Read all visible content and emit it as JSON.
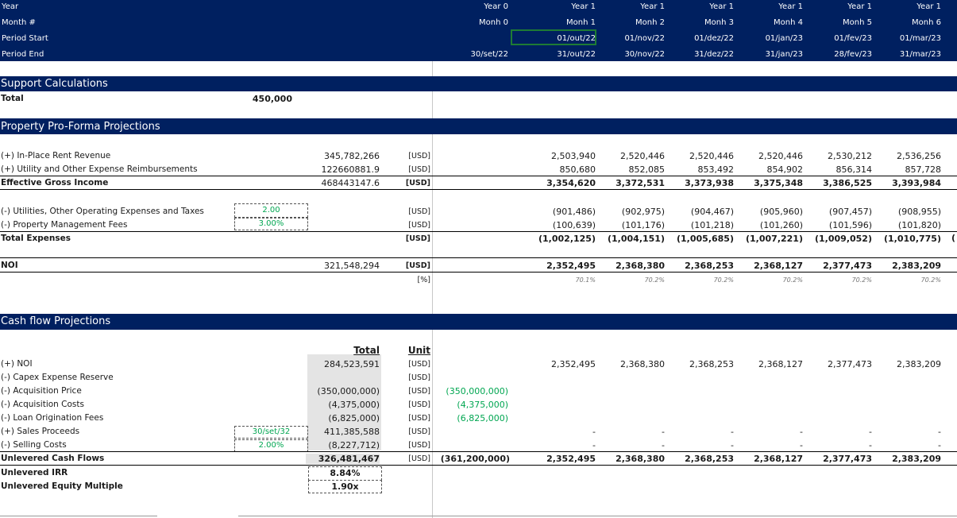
{
  "header": {
    "labels": [
      "Year",
      "Month #",
      "Period Start",
      "Period End"
    ],
    "col0": {
      "year": "Year 0",
      "month": "Monh 0",
      "start": "",
      "end": "30/set/22"
    },
    "cols": [
      {
        "year": "Year 1",
        "month": "Monh 1",
        "start": "01/out/22",
        "end": "31/out/22"
      },
      {
        "year": "Year 1",
        "month": "Monh 2",
        "start": "01/nov/22",
        "end": "30/nov/22"
      },
      {
        "year": "Year 1",
        "month": "Monh 3",
        "start": "01/dez/22",
        "end": "31/dez/22"
      },
      {
        "year": "Year 1",
        "month": "Monh 4",
        "start": "01/jan/23",
        "end": "31/jan/23"
      },
      {
        "year": "Year 1",
        "month": "Monh 5",
        "start": "01/fev/23",
        "end": "28/fev/23"
      },
      {
        "year": "Year 1",
        "month": "Monh 6",
        "start": "01/mar/23",
        "end": "31/mar/23"
      }
    ]
  },
  "support": {
    "title": "Support Calculations",
    "total_label": "Total",
    "total_value": "450,000"
  },
  "proforma": {
    "title": "Property Pro-Forma Projections",
    "rent_label": "(+) In-Place Rent Revenue",
    "rent_total": "345,782,266",
    "rent_unit": "[USD]",
    "rent_vals": [
      "2,503,940",
      "2,520,446",
      "2,520,446",
      "2,520,446",
      "2,530,212",
      "2,536,256"
    ],
    "reimb_label": "(+) Utility and Other Expense Reimbursements",
    "reimb_total": "122660881.9",
    "reimb_unit": "[USD]",
    "reimb_vals": [
      "850,680",
      "852,085",
      "853,492",
      "854,902",
      "856,314",
      "857,728"
    ],
    "egi_label": "Effective Gross Income",
    "egi_total": "468443147.6",
    "egi_unit": "[USD]",
    "egi_vals": [
      "3,354,620",
      "3,372,531",
      "3,373,938",
      "3,375,348",
      "3,386,525",
      "3,393,984"
    ],
    "util_label": "(-) Utilities, Other Operating Expenses and Taxes",
    "util_input": "2.00",
    "util_unit": "[USD]",
    "util_vals": [
      "(901,486)",
      "(902,975)",
      "(904,467)",
      "(905,960)",
      "(907,457)",
      "(908,955)"
    ],
    "mgmt_label": "(-) Property Management Fees",
    "mgmt_input": "3.00%",
    "mgmt_unit": "[USD]",
    "mgmt_vals": [
      "(100,639)",
      "(101,176)",
      "(101,218)",
      "(101,260)",
      "(101,596)",
      "(101,820)"
    ],
    "exp_label": "Total Expenses",
    "exp_unit": "[USD]",
    "exp_vals": [
      "(1,002,125)",
      "(1,004,151)",
      "(1,005,685)",
      "(1,007,221)",
      "(1,009,052)",
      "(1,010,775)"
    ],
    "exp_overflow": "(",
    "noi_label": "NOI",
    "noi_total": "321,548,294",
    "noi_unit": "[USD]",
    "noi_vals": [
      "2,352,495",
      "2,368,380",
      "2,368,253",
      "2,368,127",
      "2,377,473",
      "2,383,209"
    ],
    "margin_unit": "[%]",
    "margin_vals": [
      "70.1%",
      "70.2%",
      "70.2%",
      "70.2%",
      "70.2%",
      "70.2%"
    ]
  },
  "cashflow": {
    "title": "Cash flow Projections",
    "total_header": "Total",
    "unit_header": "Unit",
    "rows": [
      {
        "label": "(+) NOI",
        "input": "",
        "total": "284,523,591",
        "unit": "[USD]",
        "y0": "",
        "vals": [
          "2,352,495",
          "2,368,380",
          "2,368,253",
          "2,368,127",
          "2,377,473",
          "2,383,209"
        ]
      },
      {
        "label": "(-) Capex Expense Reserve",
        "input": "",
        "total": "",
        "unit": "[USD]",
        "y0": "",
        "vals": [
          "",
          "",
          "",
          "",
          "",
          ""
        ]
      },
      {
        "label": "(-) Acquisition Price",
        "input": "",
        "total": "(350,000,000)",
        "unit": "[USD]",
        "y0": "(350,000,000)",
        "vals": [
          "",
          "",
          "",
          "",
          "",
          ""
        ]
      },
      {
        "label": "(-) Acquisition Costs",
        "input": "",
        "total": "(4,375,000)",
        "unit": "[USD]",
        "y0": "(4,375,000)",
        "vals": [
          "",
          "",
          "",
          "",
          "",
          ""
        ]
      },
      {
        "label": "(-) Loan Origination Fees",
        "input": "",
        "total": "(6,825,000)",
        "unit": "[USD]",
        "y0": "(6,825,000)",
        "vals": [
          "",
          "",
          "",
          "",
          "",
          ""
        ]
      },
      {
        "label": "(+) Sales Proceeds",
        "input": "30/set/32",
        "total": "411,385,588",
        "unit": "[USD]",
        "y0": "",
        "vals": [
          "-",
          "-",
          "-",
          "-",
          "-",
          "-"
        ]
      },
      {
        "label": "(-) Selling Costs",
        "input": "2.00%",
        "total": "(8,227,712)",
        "unit": "[USD]",
        "y0": "",
        "vals": [
          "-",
          "-",
          "-",
          "-",
          "-",
          "-"
        ]
      }
    ],
    "ucf_label": "Unlevered Cash Flows",
    "ucf_total": "326,481,467",
    "ucf_unit": "[USD]",
    "ucf_y0": "(361,200,000)",
    "ucf_vals": [
      "2,352,495",
      "2,368,380",
      "2,368,253",
      "2,368,127",
      "2,377,473",
      "2,383,209"
    ],
    "irr_label": "Unlevered IRR",
    "irr_value": "8.84%",
    "em_label": "Unlevered Equity Multiple",
    "em_value": "1.90x"
  },
  "colors": {
    "band": "#002060",
    "input": "#00a651",
    "selection": "#1e7b34"
  }
}
